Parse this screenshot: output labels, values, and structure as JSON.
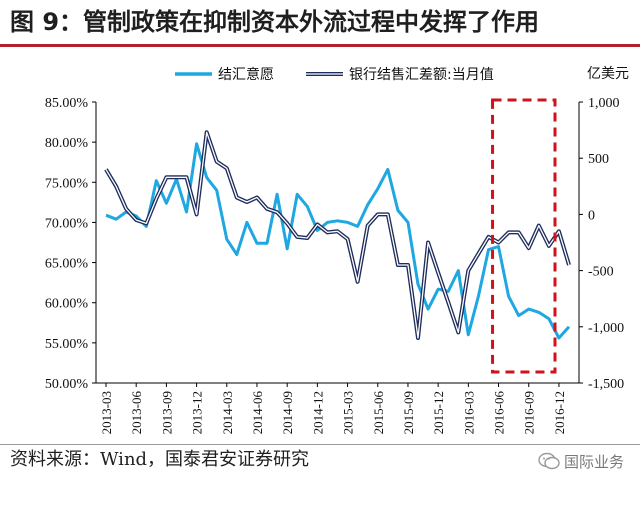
{
  "title": "图 9：管制政策在抑制资本外流过程中发挥了作用",
  "source": "资料来源：Wind，国泰君安证券研究",
  "watermark": "国际业务",
  "chart_data": {
    "type": "line",
    "title": "图 9：管制政策在抑制资本外流过程中发挥了作用",
    "legend_position": "top",
    "xlabel": "",
    "x_tick_labels": [
      "2013-03",
      "2013-06",
      "2013-09",
      "2013-12",
      "2014-03",
      "2014-06",
      "2014-09",
      "2014-12",
      "2015-03",
      "2015-06",
      "2015-09",
      "2015-12",
      "2016-03",
      "2016-06",
      "2016-09",
      "2016-12"
    ],
    "left_axis": {
      "label": "",
      "ticks": [
        "50.00%",
        "55.00%",
        "60.00%",
        "65.00%",
        "70.00%",
        "75.00%",
        "80.00%",
        "85.00%"
      ],
      "ylim": [
        50,
        85
      ]
    },
    "right_axis": {
      "label": "亿美元",
      "ticks": [
        "-1,500",
        "-1,000",
        "-500",
        "0",
        "500",
        "1,000"
      ],
      "ylim": [
        -1500,
        1000
      ]
    },
    "series": [
      {
        "name": "结汇意愿",
        "axis": "left",
        "color": "#1ea7e1",
        "values": [
          70.9,
          70.4,
          71.3,
          70.8,
          69.5,
          75.2,
          72.4,
          75.4,
          71.3,
          79.8,
          75.6,
          74.0,
          67.9,
          66.0,
          70.0,
          67.4,
          67.4,
          73.5,
          66.7,
          73.5,
          72.0,
          69.0,
          70.0,
          70.2,
          70.0,
          69.5,
          72.2,
          74.2,
          76.6,
          71.5,
          70.0,
          62.3,
          59.2,
          61.7,
          61.4,
          64.0,
          56.0,
          60.8,
          66.6,
          67.0,
          60.8,
          58.4,
          59.2,
          58.8,
          58.0,
          55.6,
          57.0
        ]
      },
      {
        "name": "银行结售汇差额:当月值",
        "axis": "right",
        "color": "#1f2d5c",
        "values": [
          400,
          250,
          50,
          -50,
          -80,
          140,
          330,
          330,
          330,
          0,
          730,
          470,
          410,
          150,
          110,
          150,
          50,
          20,
          -80,
          -200,
          -210,
          -90,
          -160,
          -150,
          -220,
          -600,
          -100,
          0,
          0,
          -450,
          -450,
          -1100,
          -250,
          -520,
          -780,
          -1050,
          -500,
          -350,
          -200,
          -250,
          -160,
          -160,
          -300,
          -100,
          -280,
          -150,
          -450
        ]
      }
    ],
    "annotations": [
      "red dashed box highlighting 2016-06 to 2016-12"
    ]
  }
}
